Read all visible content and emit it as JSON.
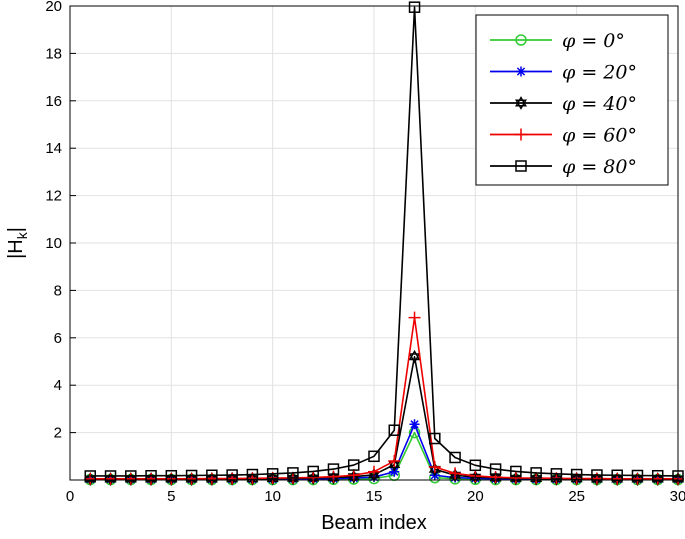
{
  "chart_data": {
    "type": "line",
    "title": "",
    "xlabel": "Beam index",
    "ylabel": "|H_k|",
    "xlim": [
      0,
      30
    ],
    "ylim": [
      0,
      20
    ],
    "xticks": [
      0,
      5,
      10,
      15,
      20,
      25,
      30
    ],
    "yticks": [
      2,
      4,
      6,
      8,
      10,
      12,
      14,
      16,
      18,
      20
    ],
    "grid": true,
    "legend_position": "top-right",
    "x": [
      1,
      2,
      3,
      4,
      5,
      6,
      7,
      8,
      9,
      10,
      11,
      12,
      13,
      14,
      15,
      16,
      17,
      18,
      19,
      20,
      21,
      22,
      23,
      24,
      25,
      26,
      27,
      28,
      29,
      30
    ],
    "series": [
      {
        "name": "φ = 0°",
        "color": "#33cc33",
        "marker": "circle",
        "values": [
          0.02,
          0.02,
          0.02,
          0.02,
          0.02,
          0.02,
          0.02,
          0.02,
          0.02,
          0.02,
          0.02,
          0.02,
          0.03,
          0.04,
          0.06,
          0.2,
          2.0,
          0.1,
          0.05,
          0.03,
          0.02,
          0.02,
          0.02,
          0.02,
          0.02,
          0.02,
          0.02,
          0.02,
          0.02,
          0.02
        ]
      },
      {
        "name": "φ = 20°",
        "color": "#0000ee",
        "marker": "asterisk",
        "values": [
          0.03,
          0.03,
          0.03,
          0.03,
          0.03,
          0.03,
          0.03,
          0.03,
          0.03,
          0.03,
          0.04,
          0.05,
          0.06,
          0.08,
          0.12,
          0.35,
          2.35,
          0.2,
          0.1,
          0.07,
          0.05,
          0.04,
          0.03,
          0.03,
          0.03,
          0.03,
          0.03,
          0.03,
          0.03,
          0.03
        ]
      },
      {
        "name": "φ = 40°",
        "color": "#000000",
        "marker": "hexagram",
        "values": [
          0.04,
          0.04,
          0.04,
          0.04,
          0.04,
          0.04,
          0.04,
          0.05,
          0.05,
          0.06,
          0.07,
          0.08,
          0.1,
          0.14,
          0.22,
          0.65,
          5.2,
          0.45,
          0.2,
          0.12,
          0.09,
          0.07,
          0.06,
          0.05,
          0.05,
          0.04,
          0.04,
          0.04,
          0.04,
          0.04
        ]
      },
      {
        "name": "φ = 60°",
        "color": "#ee0000",
        "marker": "plus",
        "values": [
          0.05,
          0.05,
          0.05,
          0.05,
          0.05,
          0.05,
          0.06,
          0.06,
          0.07,
          0.08,
          0.09,
          0.11,
          0.14,
          0.2,
          0.35,
          0.8,
          6.85,
          0.55,
          0.28,
          0.17,
          0.12,
          0.09,
          0.08,
          0.07,
          0.06,
          0.06,
          0.05,
          0.05,
          0.05,
          0.05
        ]
      },
      {
        "name": "φ = 80°",
        "color": "#000000",
        "marker": "square",
        "values": [
          0.17,
          0.17,
          0.17,
          0.18,
          0.18,
          0.19,
          0.2,
          0.21,
          0.23,
          0.26,
          0.3,
          0.36,
          0.46,
          0.63,
          1.0,
          2.1,
          19.95,
          1.75,
          0.95,
          0.62,
          0.46,
          0.36,
          0.3,
          0.26,
          0.23,
          0.21,
          0.2,
          0.19,
          0.18,
          0.17
        ]
      }
    ]
  }
}
